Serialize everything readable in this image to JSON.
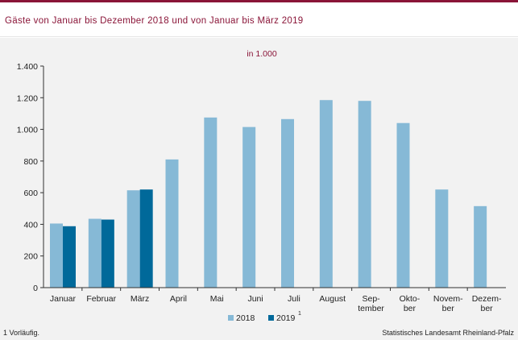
{
  "header": {
    "title": "Gäste von Januar bis Dezember 2018 und von Januar bis März 2019"
  },
  "colors": {
    "brand": "#8a1538",
    "series_2018": "#86b9d6",
    "series_2019": "#00699a",
    "background": "#f2f2f2"
  },
  "chart_data": {
    "type": "bar",
    "unit_label": "in 1.000",
    "categories": [
      [
        "Januar"
      ],
      [
        "Februar"
      ],
      [
        "März"
      ],
      [
        "April"
      ],
      [
        "Mai"
      ],
      [
        "Juni"
      ],
      [
        "Juli"
      ],
      [
        "August"
      ],
      [
        "Sep-",
        "tember"
      ],
      [
        "Okto-",
        "ber"
      ],
      [
        "Novem-",
        "ber"
      ],
      [
        "Dezem-",
        "ber"
      ]
    ],
    "series": [
      {
        "name": "2018",
        "values": [
          405,
          435,
          615,
          810,
          1075,
          1015,
          1065,
          1185,
          1180,
          1040,
          620,
          515
        ]
      },
      {
        "name": "2019",
        "sup": "1",
        "values": [
          388,
          430,
          620,
          null,
          null,
          null,
          null,
          null,
          null,
          null,
          null,
          null
        ]
      }
    ],
    "ylim": [
      0,
      1400
    ],
    "yticks": [
      0,
      200,
      400,
      600,
      800,
      1000,
      1200,
      1400
    ],
    "ytick_labels": [
      "0",
      "200",
      "400",
      "600",
      "800",
      "1.000",
      "1.200",
      "1.400"
    ],
    "grid": false,
    "legend_position": "bottom-center"
  },
  "footer": {
    "footnote": "1 Vorläufig.",
    "source": "Statistisches Landesamt Rheinland-Pfalz"
  }
}
